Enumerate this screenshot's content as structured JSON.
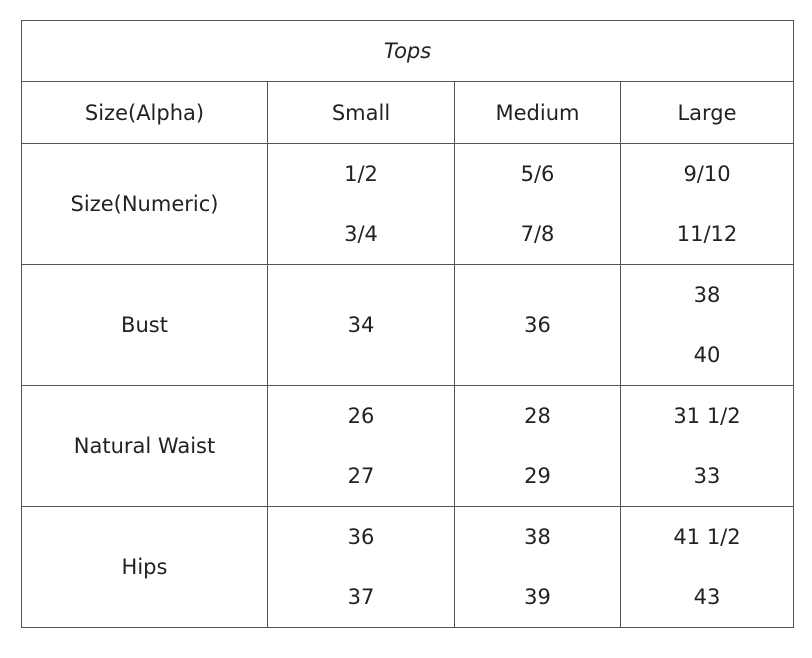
{
  "title": "Tops",
  "headers": [
    "Size(Alpha)",
    "Small",
    "Medium",
    "Large"
  ],
  "rows": [
    {
      "label": "Size(Numeric)",
      "small": [
        "1/2",
        "3/4"
      ],
      "medium": [
        "5/6",
        "7/8"
      ],
      "large": [
        "9/10",
        "11/12"
      ]
    },
    {
      "label": "Bust",
      "small": [
        "34"
      ],
      "medium": [
        "36"
      ],
      "large": [
        "38",
        "40"
      ]
    },
    {
      "label": "Natural Waist",
      "small": [
        "26",
        "27"
      ],
      "medium": [
        "28",
        "29"
      ],
      "large": [
        "31 1/2",
        "33"
      ]
    },
    {
      "label": "Hips",
      "small": [
        "36",
        "37"
      ],
      "medium": [
        "38",
        "39"
      ],
      "large": [
        "41 1/2",
        "43"
      ]
    }
  ]
}
